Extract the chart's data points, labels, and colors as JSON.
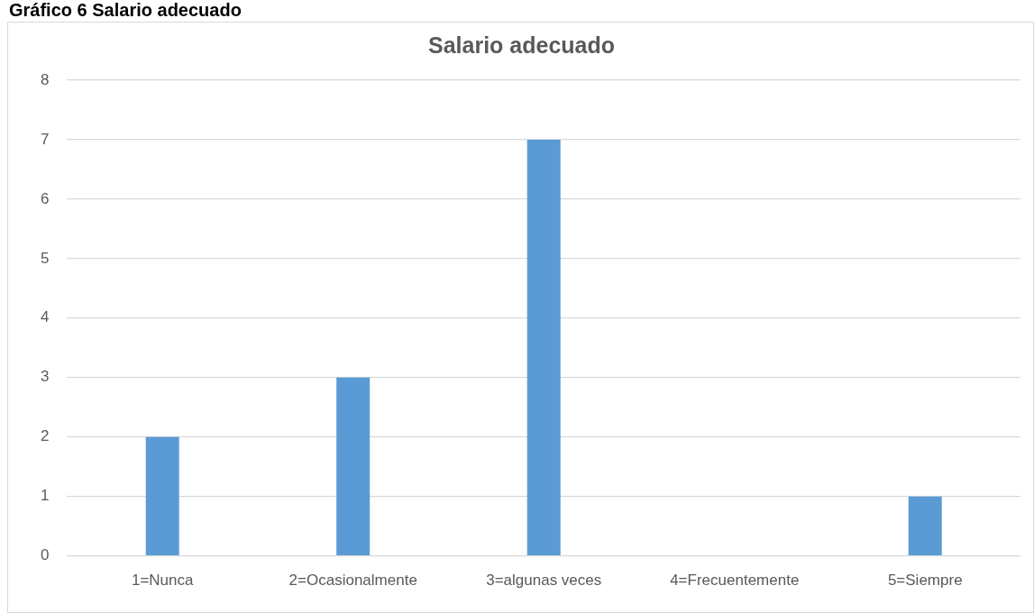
{
  "chart_data": {
    "type": "bar",
    "title": "Salario adecuado",
    "annotations": [
      "Gráfico 6 Salario adecuado"
    ],
    "categories": [
      "1=Nunca",
      "2=Ocasionalmente",
      "3=algunas veces",
      "4=Frecuentemente",
      "5=Siempre"
    ],
    "values": [
      2,
      3,
      7,
      0,
      1
    ],
    "color": "#5b9bd5",
    "ylim": [
      0,
      8
    ],
    "yticks": [
      0,
      1,
      2,
      3,
      4,
      5,
      6,
      7,
      8
    ],
    "grid": "y"
  }
}
